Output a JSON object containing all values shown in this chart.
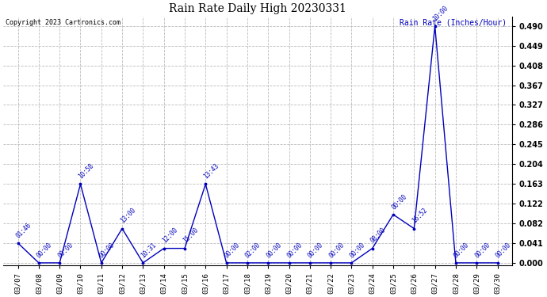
{
  "title": "Rain Rate Daily High 20230331",
  "ylabel": "Rain Rate (Inches/Hour)",
  "copyright": "Copyright 2023 Cartronics.com",
  "background_color": "#ffffff",
  "line_color": "#0000bb",
  "text_color": "#0000bb",
  "dates": [
    "03/07",
    "03/08",
    "03/09",
    "03/10",
    "03/11",
    "03/12",
    "03/13",
    "03/14",
    "03/15",
    "03/16",
    "03/17",
    "03/18",
    "03/19",
    "03/20",
    "03/21",
    "03/22",
    "03/23",
    "03/24",
    "03/25",
    "03/26",
    "03/27",
    "03/28",
    "03/29",
    "03/30"
  ],
  "values": [
    0.041,
    0.0,
    0.0,
    0.163,
    0.0,
    0.071,
    0.0,
    0.03,
    0.03,
    0.163,
    0.0,
    0.0,
    0.0,
    0.0,
    0.0,
    0.0,
    0.0,
    0.03,
    0.1,
    0.071,
    0.49,
    0.0,
    0.0,
    0.0
  ],
  "annotations": [
    {
      "idx": 0,
      "label": "01:46"
    },
    {
      "idx": 1,
      "label": "00:00"
    },
    {
      "idx": 2,
      "label": "00:00"
    },
    {
      "idx": 3,
      "label": "10:58"
    },
    {
      "idx": 4,
      "label": "00:00"
    },
    {
      "idx": 5,
      "label": "13:00"
    },
    {
      "idx": 6,
      "label": "10:31"
    },
    {
      "idx": 7,
      "label": "12:00"
    },
    {
      "idx": 8,
      "label": "15:00"
    },
    {
      "idx": 9,
      "label": "13:43"
    },
    {
      "idx": 10,
      "label": "00:00"
    },
    {
      "idx": 11,
      "label": "02:00"
    },
    {
      "idx": 12,
      "label": "00:00"
    },
    {
      "idx": 13,
      "label": "00:00"
    },
    {
      "idx": 14,
      "label": "00:00"
    },
    {
      "idx": 15,
      "label": "00:00"
    },
    {
      "idx": 16,
      "label": "00:00"
    },
    {
      "idx": 17,
      "label": "08:00"
    },
    {
      "idx": 18,
      "label": "00:00"
    },
    {
      "idx": 19,
      "label": "16:52"
    },
    {
      "idx": 20,
      "label": "10:00"
    },
    {
      "idx": 21,
      "label": "00:00"
    },
    {
      "idx": 22,
      "label": "00:00"
    },
    {
      "idx": 23,
      "label": "00:00"
    }
  ],
  "yticks": [
    0.0,
    0.041,
    0.082,
    0.122,
    0.163,
    0.204,
    0.245,
    0.286,
    0.327,
    0.367,
    0.408,
    0.449,
    0.49
  ],
  "ylim": [
    -0.005,
    0.51
  ]
}
